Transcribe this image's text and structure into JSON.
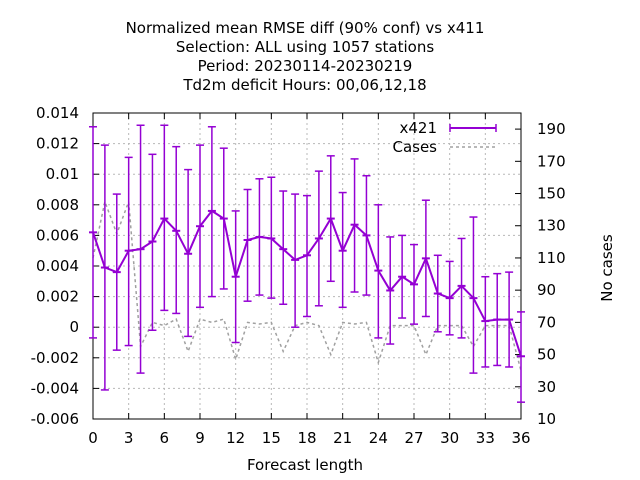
{
  "chart_data": {
    "type": "line",
    "title_lines": [
      "Normalized mean RMSE diff (90% conf) vs x411",
      "Selection: ALL using  1057 stations",
      "Period: 20230114-20230219",
      "Td2m deficit   Hours:  00,06,12,18"
    ],
    "xlabel": "Forecast length",
    "ylabel_right": "No cases",
    "xlim": [
      0,
      36
    ],
    "ylim": [
      -0.006,
      0.014
    ],
    "y2lim": [
      10,
      200
    ],
    "x_ticks": [
      0,
      3,
      6,
      9,
      12,
      15,
      18,
      21,
      24,
      27,
      30,
      33,
      36
    ],
    "y_ticks": [
      -0.006,
      -0.004,
      -0.002,
      0,
      0.002,
      0.004,
      0.006,
      0.008,
      0.01,
      0.012,
      0.014
    ],
    "y_tick_labels": [
      "-0.006",
      "-0.004",
      "-0.002",
      "0",
      "0.002",
      "0.004",
      "0.006",
      "0.008",
      "0.01",
      "0.012",
      "0.014"
    ],
    "y2_ticks": [
      10,
      30,
      50,
      70,
      90,
      110,
      130,
      150,
      170,
      190
    ],
    "grid": true,
    "legend_position": "top-right",
    "x": [
      0,
      1,
      2,
      3,
      4,
      5,
      6,
      7,
      8,
      9,
      10,
      11,
      12,
      13,
      14,
      15,
      16,
      17,
      18,
      19,
      20,
      21,
      22,
      23,
      24,
      25,
      26,
      27,
      28,
      29,
      30,
      31,
      32,
      33,
      34,
      35,
      36
    ],
    "series": [
      {
        "name": "x421",
        "color": "#9400d3",
        "values": [
          0.0062,
          0.0039,
          0.0036,
          0.005,
          0.0051,
          0.0056,
          0.0071,
          0.0063,
          0.0048,
          0.0066,
          0.0076,
          0.0071,
          0.0033,
          0.0057,
          0.0059,
          0.0058,
          0.0051,
          0.0044,
          0.0047,
          0.0058,
          0.0071,
          0.005,
          0.0067,
          0.006,
          0.0037,
          0.0024,
          0.0033,
          0.0028,
          0.0045,
          0.0022,
          0.0019,
          0.0027,
          0.0019,
          0.0004,
          0.0005,
          0.0005,
          -0.0019
        ],
        "err_low": [
          -0.0007,
          -0.0041,
          -0.0015,
          -0.0012,
          -0.003,
          -0.0002,
          0.0011,
          0.0009,
          -0.0006,
          0.0013,
          0.002,
          0.0025,
          -0.001,
          0.0017,
          0.0021,
          0.0019,
          0.0015,
          0.0,
          0.0007,
          0.0014,
          0.003,
          0.0013,
          0.0023,
          0.0021,
          -0.0007,
          -0.0011,
          0.0006,
          0.0002,
          0.0007,
          -0.0003,
          -0.0005,
          -0.0007,
          -0.003,
          -0.0026,
          -0.0025,
          -0.0026,
          -0.0049
        ],
        "err_high": [
          0.0131,
          0.0119,
          0.0087,
          0.0111,
          0.0132,
          0.0113,
          0.0132,
          0.0118,
          0.0103,
          0.0119,
          0.0131,
          0.0117,
          0.0076,
          0.009,
          0.0097,
          0.0098,
          0.0089,
          0.0087,
          0.0086,
          0.0102,
          0.0112,
          0.0088,
          0.011,
          0.0099,
          0.008,
          0.0059,
          0.006,
          0.0054,
          0.0083,
          0.0047,
          0.0043,
          0.0058,
          0.0072,
          0.0033,
          0.0035,
          0.0036,
          0.001
        ]
      },
      {
        "name": "Cases",
        "color": "#a0a0a0",
        "axis": "right",
        "values": [
          110,
          145,
          125,
          145,
          55,
          70,
          68,
          72,
          52,
          72,
          70,
          72,
          47,
          70,
          69,
          70,
          52,
          68,
          70,
          68,
          50,
          70,
          69,
          70,
          45,
          68,
          68,
          68,
          50,
          68,
          68,
          68,
          55,
          68,
          68,
          68,
          40
        ]
      }
    ]
  }
}
